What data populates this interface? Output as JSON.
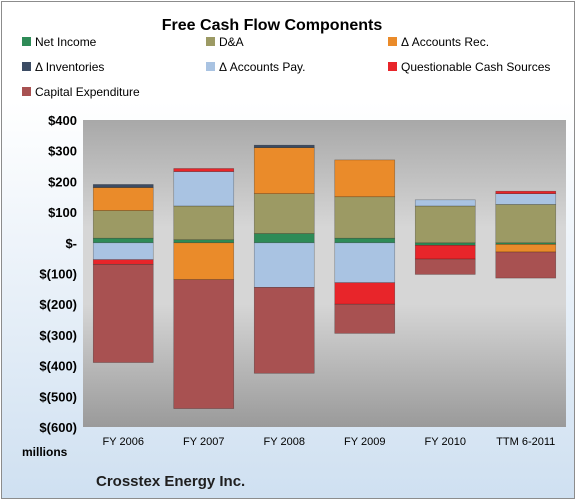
{
  "chart_data": {
    "type": "bar",
    "stacked": true,
    "title": "Free Cash Flow Components",
    "units_label": "millions",
    "footer": "Crosstex Energy Inc.",
    "categories": [
      "FY 2006",
      "FY 2007",
      "FY 2008",
      "FY 2009",
      "FY 2010",
      "TTM 6-2011"
    ],
    "ylim": [
      -600,
      400
    ],
    "yticks": [
      400,
      300,
      200,
      100,
      0,
      -100,
      -200,
      -300,
      -400,
      -500,
      -600
    ],
    "ytick_labels": [
      "$400",
      "$300",
      "$200",
      "$100",
      "$-",
      "$(100)",
      "$(200)",
      "$(300)",
      "$(400)",
      "$(500)",
      "$(600)"
    ],
    "grid": false,
    "legend_position": "top",
    "series": [
      {
        "name": "Net Income",
        "color": "#2e8b57",
        "values": [
          15,
          10,
          30,
          15,
          -8,
          -5
        ]
      },
      {
        "name": "D&A",
        "color": "#9c9a64",
        "values": [
          90,
          110,
          130,
          135,
          120,
          125
        ]
      },
      {
        "name": "Δ Accounts Rec.",
        "color": "#ea8b2a",
        "values": [
          75,
          -120,
          150,
          120,
          0,
          -25
        ]
      },
      {
        "name": "Δ Inventories",
        "color": "#3c4c64",
        "values": [
          10,
          0,
          8,
          0,
          0,
          0
        ]
      },
      {
        "name": "Δ Accounts Pay.",
        "color": "#a9c3e2",
        "values": [
          -55,
          112,
          -145,
          -130,
          20,
          35
        ]
      },
      {
        "name": "Questionable Cash Sources",
        "color": "#e8252a",
        "values": [
          -15,
          10,
          0,
          -70,
          -45,
          8
        ]
      },
      {
        "name": "Capital Expenditure",
        "color": "#a85151",
        "values": [
          -320,
          -420,
          -280,
          -95,
          -50,
          -85
        ]
      }
    ]
  }
}
